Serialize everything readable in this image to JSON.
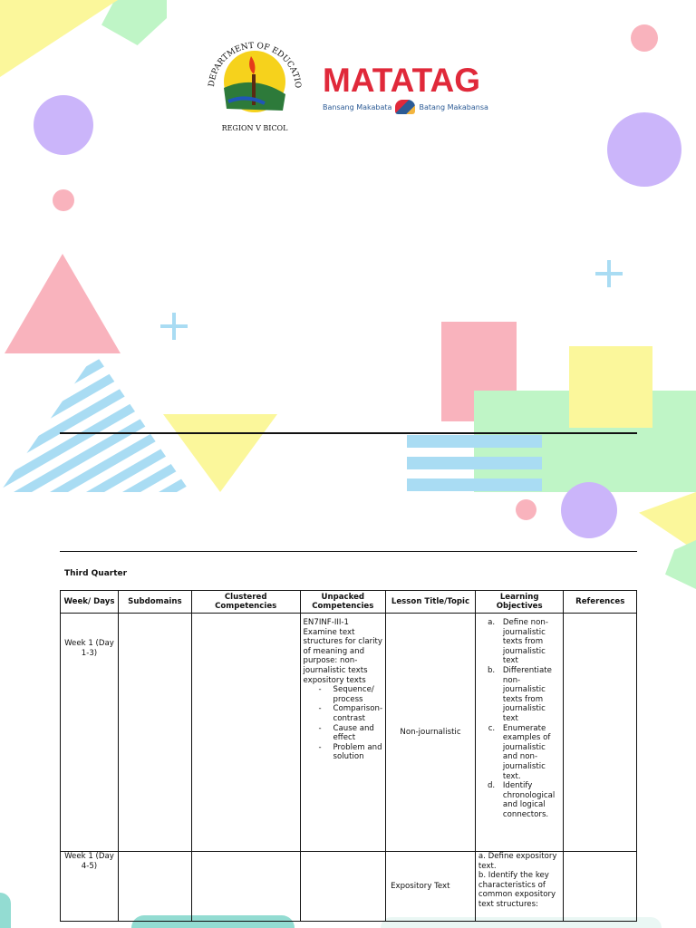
{
  "header": {
    "deped_logo": {
      "ring_text": "DEPARTMENT OF EDUCATION",
      "region": "REGION V BICOL"
    },
    "matatag_logo": {
      "word": "MATATAG",
      "left_tagline": "Bansang Makabata",
      "right_tagline": "Batang Makabansa"
    }
  },
  "colors": {
    "pink": "#f9b3bd",
    "purple": "#cbb5fa",
    "yellow": "#fbf79b",
    "green": "#bff5c6",
    "blue": "#a9dcf3",
    "teal": "#93dcd2",
    "brand_red": "#e0293a"
  },
  "section_title": "Third Quarter",
  "table": {
    "headers": [
      "Week/ Days",
      "Subdomains",
      "Clustered Competencies",
      "Unpacked Competencies",
      "Lesson Title/Topic",
      "Learning Objectives",
      "References"
    ],
    "rows": [
      {
        "week": "Week 1 (Day 1-3)",
        "subdomains": "",
        "clustered": "",
        "unpacked_intro": "EN7INF-III-1 Examine text structures for clarity of meaning and purpose: non-journalistic texts expository texts",
        "unpacked_items": [
          "Sequence/ process",
          "Comparison-contrast",
          "Cause and effect",
          "Problem and solution"
        ],
        "lesson": "Non-journalistic",
        "objectives": [
          "Define non-journalistic texts from journalistic text",
          "Differentiate non-journalistic texts from journalistic text",
          "Enumerate examples of journalistic and non-journalistic text.",
          "Identify chronological and logical connectors."
        ],
        "references": ""
      },
      {
        "week": "Week 1 (Day 4-5)",
        "subdomains": "",
        "clustered": "",
        "unpacked": "",
        "lesson": "Expository Text",
        "objectives_text": [
          "a. Define expository text.",
          "b. Identify the key characteristics of common expository text structures:"
        ],
        "references": ""
      }
    ]
  }
}
